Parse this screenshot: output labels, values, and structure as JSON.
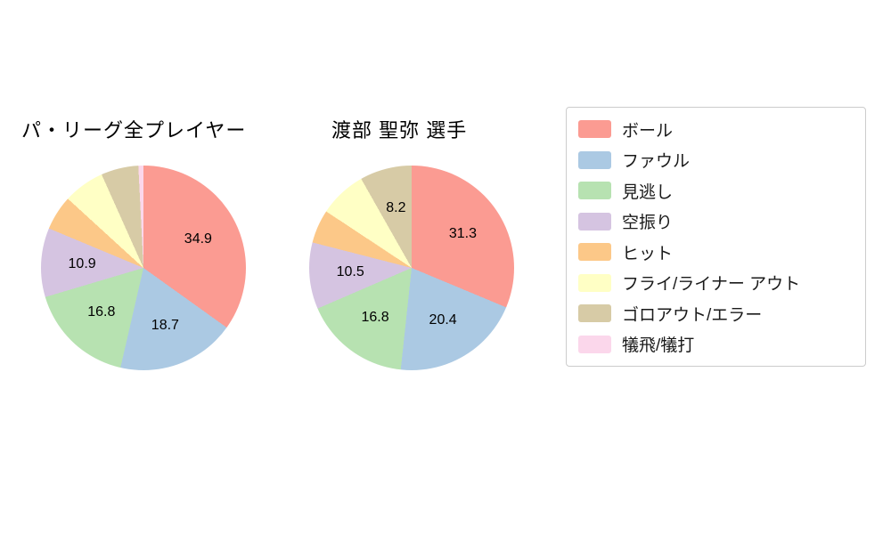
{
  "legend": {
    "items": [
      {
        "label": "ボール",
        "color": "#fb9b92"
      },
      {
        "label": "ファウル",
        "color": "#abc9e3"
      },
      {
        "label": "見逃し",
        "color": "#b7e2b1"
      },
      {
        "label": "空振り",
        "color": "#d5c4e1"
      },
      {
        "label": "ヒット",
        "color": "#fcc888"
      },
      {
        "label": "フライ/ライナー アウト",
        "color": "#ffffc5"
      },
      {
        "label": "ゴロアウト/エラー",
        "color": "#d7cba6"
      },
      {
        "label": "犠飛/犠打",
        "color": "#fbd7eb"
      }
    ]
  },
  "chart_data": [
    {
      "type": "pie",
      "title": "パ・リーグ全プレイヤー",
      "start_angle": "top",
      "direction": "clockwise",
      "slices": [
        {
          "label": "ボール",
          "value": 34.9,
          "labeled": true
        },
        {
          "label": "ファウル",
          "value": 18.7,
          "labeled": true
        },
        {
          "label": "見逃し",
          "value": 16.8,
          "labeled": true
        },
        {
          "label": "空振り",
          "value": 10.9,
          "labeled": true
        },
        {
          "label": "ヒット",
          "value": 5.5,
          "labeled": false,
          "estimated": true
        },
        {
          "label": "フライ/ライナー アウト",
          "value": 6.5,
          "labeled": false,
          "estimated": true
        },
        {
          "label": "ゴロアウト/エラー",
          "value": 5.9,
          "labeled": false,
          "estimated": true
        },
        {
          "label": "犠飛/犠打",
          "value": 0.8,
          "labeled": false,
          "estimated": true
        }
      ]
    },
    {
      "type": "pie",
      "title": "渡部 聖弥  選手",
      "start_angle": "top",
      "direction": "clockwise",
      "slices": [
        {
          "label": "ボール",
          "value": 31.3,
          "labeled": true
        },
        {
          "label": "ファウル",
          "value": 20.4,
          "labeled": true
        },
        {
          "label": "見逃し",
          "value": 16.8,
          "labeled": true
        },
        {
          "label": "空振り",
          "value": 10.5,
          "labeled": true
        },
        {
          "label": "ヒット",
          "value": 5.3,
          "labeled": false,
          "estimated": true
        },
        {
          "label": "フライ/ライナー アウト",
          "value": 7.5,
          "labeled": false,
          "estimated": true
        },
        {
          "label": "ゴロアウト/エラー",
          "value": 8.2,
          "labeled": true
        },
        {
          "label": "犠飛/犠打",
          "value": 0,
          "labeled": false,
          "estimated": true
        }
      ]
    }
  ]
}
